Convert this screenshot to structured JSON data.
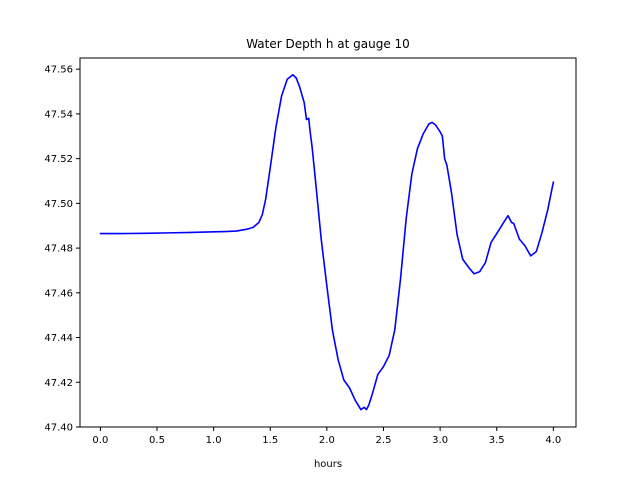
{
  "chart_data": {
    "type": "line",
    "title": "Water Depth h at gauge 10",
    "xlabel": "hours",
    "ylabel": "",
    "xlim": [
      -0.18,
      4.2
    ],
    "ylim": [
      47.4,
      47.565
    ],
    "xticks": [
      0.0,
      0.5,
      1.0,
      1.5,
      2.0,
      2.5,
      3.0,
      3.5,
      4.0
    ],
    "xtick_labels": [
      "0.0",
      "0.5",
      "1.0",
      "1.5",
      "2.0",
      "2.5",
      "3.0",
      "3.5",
      "4.0"
    ],
    "yticks": [
      47.4,
      47.42,
      47.44,
      47.46,
      47.48,
      47.5,
      47.52,
      47.54,
      47.56
    ],
    "ytick_labels": [
      "47.40",
      "47.42",
      "47.44",
      "47.46",
      "47.48",
      "47.50",
      "47.52",
      "47.54",
      "47.56"
    ],
    "grid": false,
    "series": [
      {
        "color": "#0000ff",
        "x": [
          0.0,
          0.2,
          0.4,
          0.6,
          0.8,
          1.0,
          1.1,
          1.2,
          1.3,
          1.35,
          1.4,
          1.43,
          1.46,
          1.5,
          1.55,
          1.6,
          1.65,
          1.7,
          1.73,
          1.76,
          1.8,
          1.82,
          1.84,
          1.85,
          1.87,
          1.9,
          1.95,
          2.0,
          2.05,
          2.1,
          2.15,
          2.2,
          2.25,
          2.3,
          2.33,
          2.35,
          2.37,
          2.4,
          2.45,
          2.5,
          2.55,
          2.6,
          2.65,
          2.7,
          2.75,
          2.8,
          2.85,
          2.9,
          2.93,
          2.96,
          3.0,
          3.02,
          3.04,
          3.06,
          3.1,
          3.15,
          3.2,
          3.25,
          3.3,
          3.35,
          3.4,
          3.45,
          3.5,
          3.55,
          3.58,
          3.6,
          3.63,
          3.65,
          3.7,
          3.75,
          3.8,
          3.85,
          3.9,
          3.95,
          4.0
        ],
        "values": [
          47.4865,
          47.4865,
          47.4866,
          47.4868,
          47.487,
          47.4873,
          47.4874,
          47.4876,
          47.4885,
          47.4893,
          47.4915,
          47.495,
          47.502,
          47.516,
          47.534,
          47.548,
          47.5555,
          47.5575,
          47.556,
          47.552,
          47.545,
          47.5375,
          47.538,
          47.533,
          47.525,
          47.51,
          47.484,
          47.463,
          47.443,
          47.43,
          47.421,
          47.4175,
          47.412,
          47.4078,
          47.4088,
          47.4078,
          47.4098,
          47.4145,
          47.4235,
          47.427,
          47.432,
          47.4435,
          47.466,
          47.493,
          47.513,
          47.5245,
          47.531,
          47.5355,
          47.5362,
          47.535,
          47.532,
          47.53,
          47.52,
          47.517,
          47.505,
          47.486,
          47.475,
          47.4715,
          47.4685,
          47.4695,
          47.4735,
          47.4825,
          47.4865,
          47.4905,
          47.493,
          47.4945,
          47.4915,
          47.491,
          47.484,
          47.481,
          47.4765,
          47.4785,
          47.487,
          47.497,
          47.5095
        ]
      }
    ]
  }
}
